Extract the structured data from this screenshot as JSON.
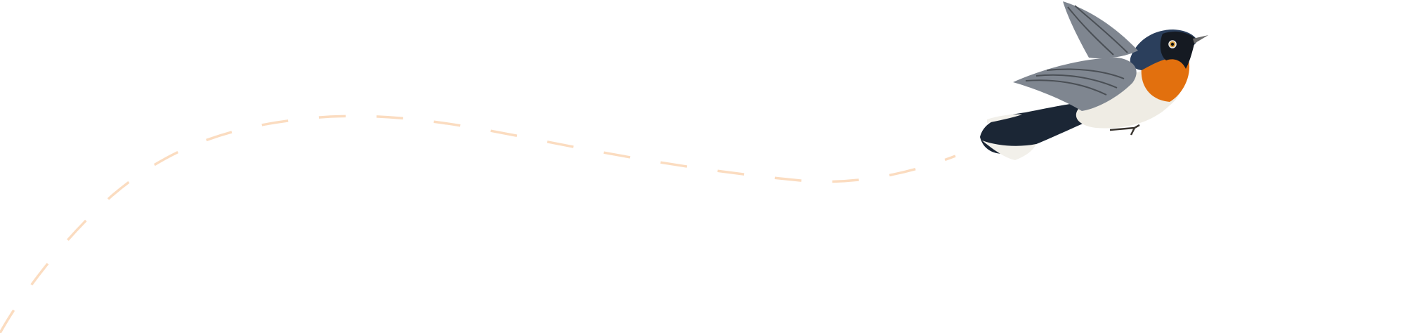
{
  "illustration": {
    "subject": "bird-icon",
    "path_style": "dashed",
    "colors": {
      "path": "#fbdcc0",
      "wing": "#7f8690",
      "wing_dark": "#4a4f55",
      "head": "#2b3f5c",
      "mask": "#151a22",
      "throat": "#e2700e",
      "belly": "#efece4",
      "tail": "#1b2635",
      "tail_tip": "#f2f0ea",
      "beak": "#6b6b6b"
    }
  }
}
